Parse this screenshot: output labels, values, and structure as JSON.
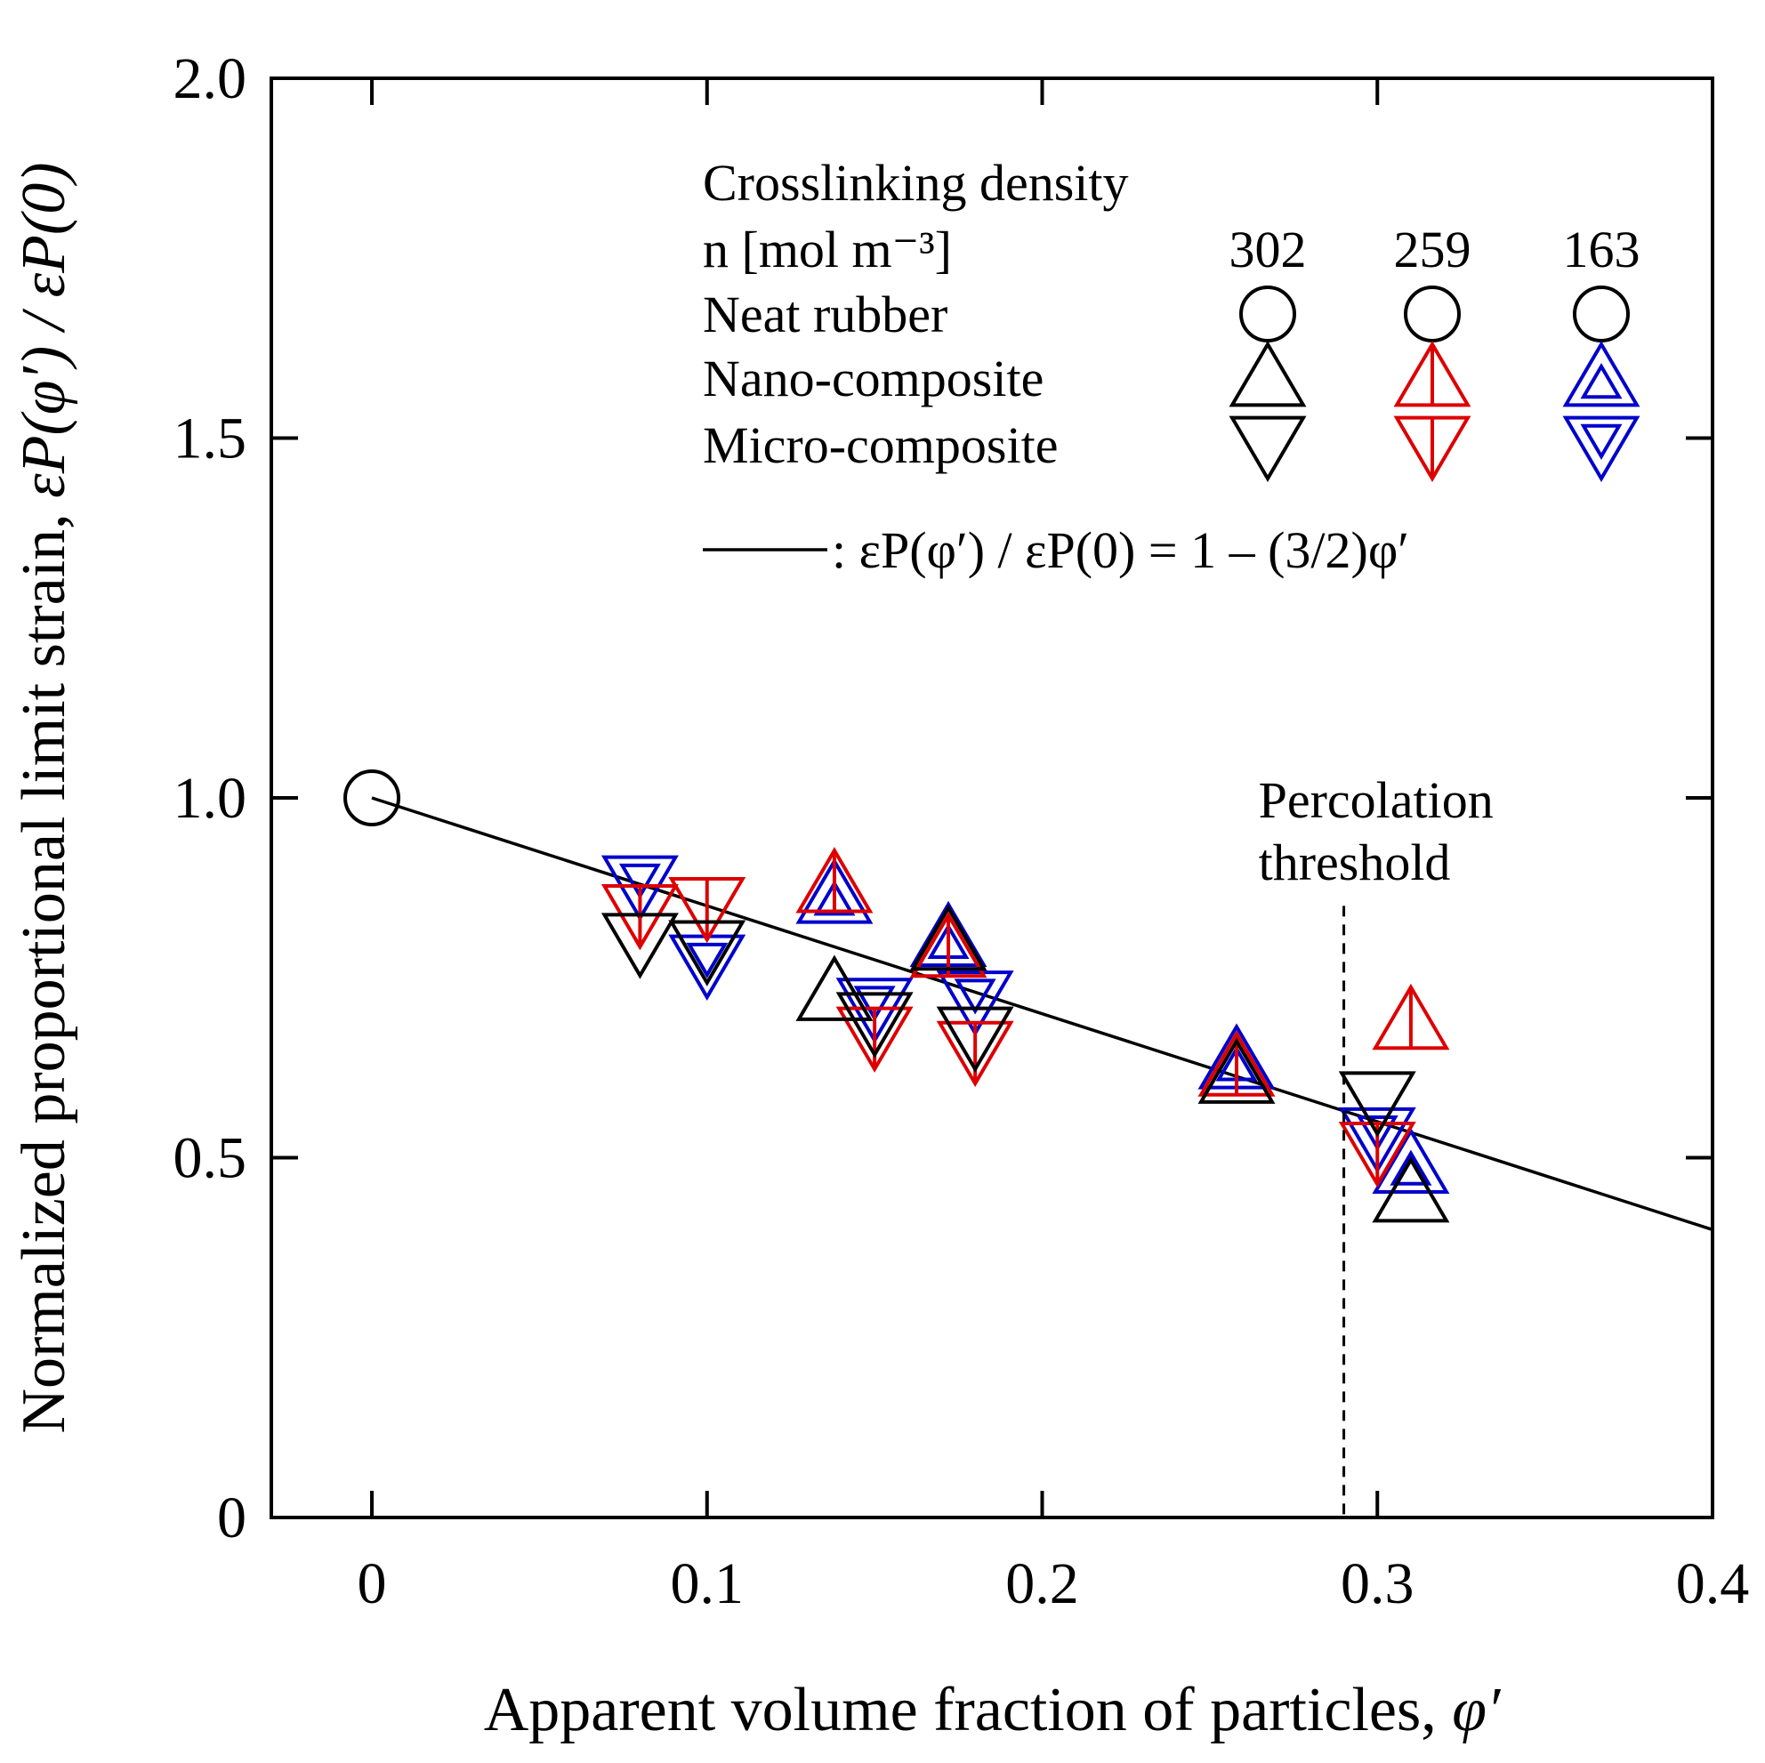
{
  "chart_data": {
    "type": "scatter",
    "xlabel": "Apparent volume fraction of particles, ",
    "xlabel_symbol": "φ′",
    "ylabel": "Normalized proportional limit strain, ",
    "ylabel_symbol": "εP(φ′) / εP(0)",
    "xlim": [
      -0.03,
      0.4
    ],
    "ylim": [
      0,
      2.0
    ],
    "x_ticks": [
      0,
      0.1,
      0.2,
      0.3,
      0.4
    ],
    "x_tick_labels": [
      "0",
      "0.1",
      "0.2",
      "0.3",
      "0.4"
    ],
    "y_ticks": [
      0,
      0.5,
      1.0,
      1.5,
      2.0
    ],
    "y_tick_labels": [
      "0",
      "0.5",
      "1.0",
      "1.5",
      "2.0"
    ],
    "legend": {
      "position": "top-right",
      "title": "Crosslinking density",
      "unit_label": "n [mol m⁻³]",
      "densities": [
        "302",
        "259",
        "163"
      ],
      "rows": [
        "Neat rubber",
        "Nano-composite",
        "Micro-composite"
      ],
      "line_label": ": εP(φ′) / εP(0) = 1 – (3/2)φ′"
    },
    "colors": {
      "302": "#000000",
      "259": "#dd0000",
      "163": "#0000cc"
    },
    "series": [
      {
        "material": "Neat rubber",
        "density": "302",
        "marker": "circle",
        "points": [
          [
            0.0,
            1.0
          ]
        ]
      },
      {
        "material": "Nano-composite",
        "density": "302",
        "marker": "triangle-up",
        "points": [
          [
            0.138,
            0.73
          ],
          [
            0.172,
            0.8
          ],
          [
            0.258,
            0.615
          ],
          [
            0.31,
            0.45
          ]
        ]
      },
      {
        "material": "Nano-composite",
        "density": "259",
        "marker": "triangle-up-line",
        "points": [
          [
            0.138,
            0.88
          ],
          [
            0.172,
            0.79
          ],
          [
            0.258,
            0.625
          ],
          [
            0.31,
            0.69
          ]
        ]
      },
      {
        "material": "Nano-composite",
        "density": "163",
        "marker": "triangle-up-double",
        "points": [
          [
            0.138,
            0.865
          ],
          [
            0.172,
            0.805
          ],
          [
            0.258,
            0.635
          ],
          [
            0.31,
            0.49
          ]
        ]
      },
      {
        "material": "Micro-composite",
        "density": "302",
        "marker": "triangle-down",
        "points": [
          [
            0.08,
            0.8
          ],
          [
            0.1,
            0.79
          ],
          [
            0.15,
            0.69
          ],
          [
            0.18,
            0.67
          ],
          [
            0.3,
            0.58
          ]
        ]
      },
      {
        "material": "Micro-composite",
        "density": "259",
        "marker": "triangle-down-line",
        "points": [
          [
            0.08,
            0.84
          ],
          [
            0.1,
            0.85
          ],
          [
            0.15,
            0.67
          ],
          [
            0.18,
            0.65
          ],
          [
            0.3,
            0.51
          ]
        ]
      },
      {
        "material": "Micro-composite",
        "density": "163",
        "marker": "triangle-down-double",
        "points": [
          [
            0.08,
            0.88
          ],
          [
            0.1,
            0.77
          ],
          [
            0.15,
            0.71
          ],
          [
            0.18,
            0.72
          ],
          [
            0.3,
            0.53
          ]
        ]
      }
    ],
    "fit_line": {
      "x": [
        0.0,
        0.4
      ],
      "y": [
        1.0,
        0.4
      ]
    },
    "annotations": [
      {
        "text_lines": [
          "Percolation",
          "threshold"
        ],
        "x": 0.29,
        "style": "dashed-vertical"
      }
    ]
  }
}
